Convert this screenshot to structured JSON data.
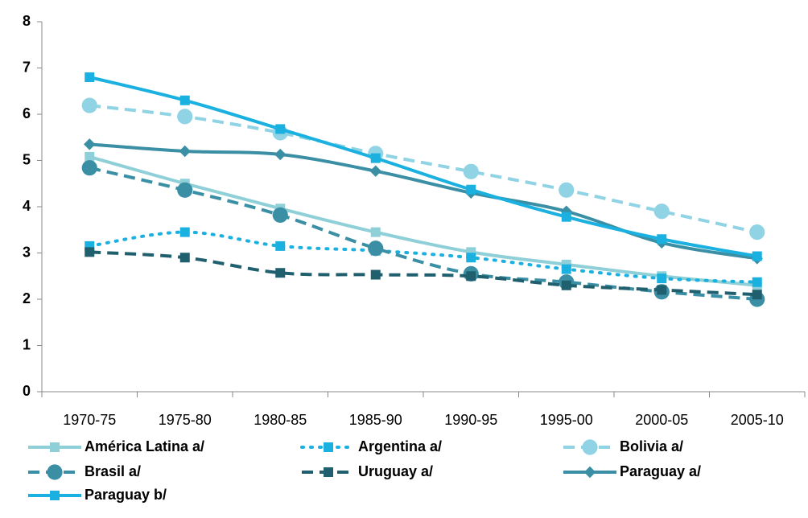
{
  "chart_data": {
    "type": "line",
    "categories": [
      "1970-75",
      "1975-80",
      "1980-85",
      "1985-90",
      "1990-95",
      "1995-00",
      "2000-05",
      "2005-10"
    ],
    "ylim": [
      0,
      8
    ],
    "yticks": [
      0,
      1,
      2,
      3,
      4,
      5,
      6,
      7,
      8
    ],
    "grid": false,
    "smooth": true,
    "legend": "bottom",
    "series": [
      {
        "name": "América Latina a/",
        "color": "#8fd0d8",
        "dash": "solid",
        "marker": "square",
        "values": [
          5.08,
          4.5,
          3.96,
          3.45,
          3.02,
          2.75,
          2.5,
          2.3
        ]
      },
      {
        "name": "Argentina a/",
        "color": "#1ab0e0",
        "dash": "dot",
        "marker": "square",
        "values": [
          3.15,
          3.45,
          3.15,
          3.05,
          2.9,
          2.65,
          2.45,
          2.37
        ]
      },
      {
        "name": "Bolivia a/",
        "color": "#8fd3e4",
        "dash": "dash",
        "marker": "circle",
        "values": [
          6.19,
          5.95,
          5.6,
          5.15,
          4.76,
          4.36,
          3.9,
          3.45
        ]
      },
      {
        "name": "Brasil a/",
        "color": "#3a8fa5",
        "dash": "dash",
        "marker": "circle",
        "values": [
          4.84,
          4.36,
          3.82,
          3.1,
          2.55,
          2.37,
          2.16,
          2.0
        ]
      },
      {
        "name": "Uruguay a/",
        "color": "#1f5f6e",
        "dash": "dash",
        "marker": "square",
        "values": [
          3.02,
          2.9,
          2.57,
          2.53,
          2.5,
          2.3,
          2.2,
          2.1
        ]
      },
      {
        "name": "Paraguay a/",
        "color": "#3a8fa5",
        "dash": "solid",
        "marker": "diamond",
        "values": [
          5.35,
          5.2,
          5.13,
          4.77,
          4.3,
          3.9,
          3.22,
          2.88
        ]
      },
      {
        "name": "Paraguay b/",
        "color": "#1ab0e0",
        "dash": "solid",
        "marker": "square",
        "values": [
          6.8,
          6.3,
          5.68,
          5.05,
          4.37,
          3.78,
          3.3,
          2.93
        ]
      }
    ]
  }
}
